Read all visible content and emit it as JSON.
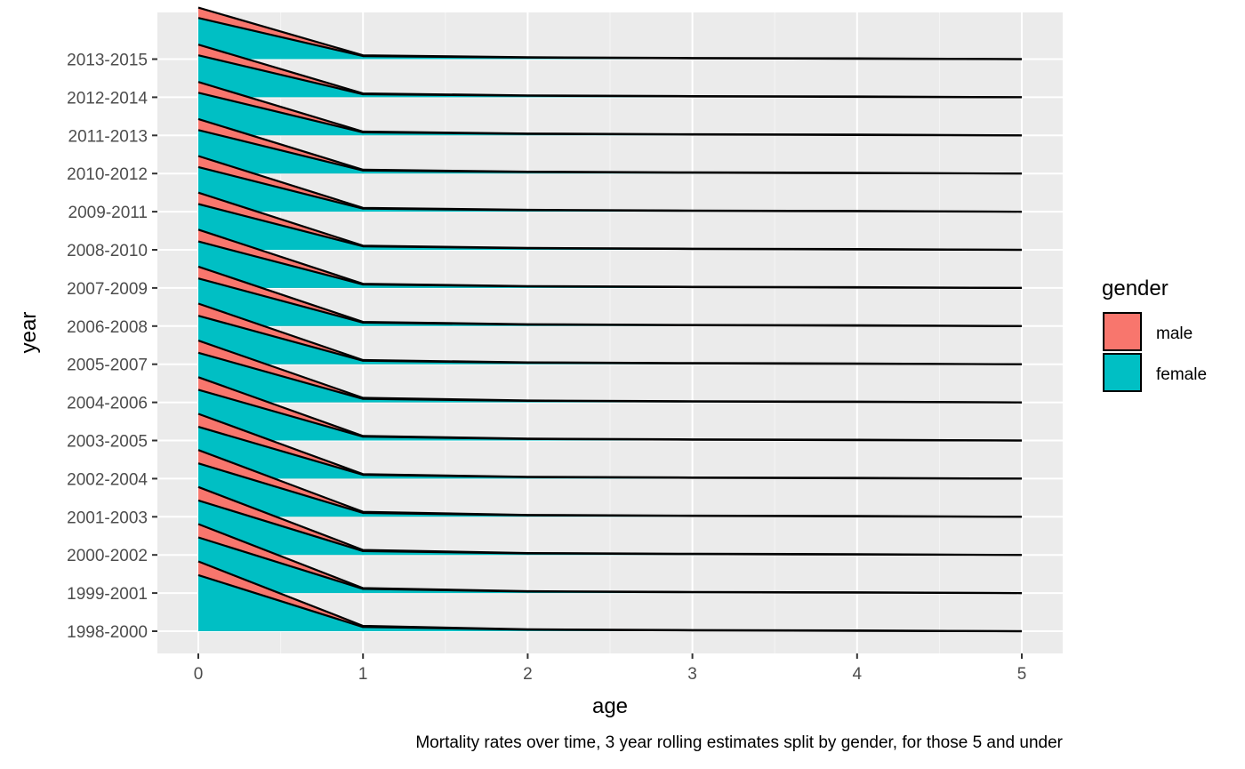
{
  "chart_data": {
    "type": "area",
    "subtype": "ridgeline",
    "xlabel": "age",
    "ylabel": "year",
    "caption": "Mortality rates over time, 3 year rolling estimates split by gender, for those 5 and under",
    "x": [
      0,
      1,
      2,
      3,
      4,
      5
    ],
    "x_ticks": [
      "0",
      "1",
      "2",
      "3",
      "4",
      "5"
    ],
    "xlim": [
      -0.25,
      5.25
    ],
    "categories": [
      "1998-2000",
      "1999-2001",
      "2000-2002",
      "2001-2003",
      "2002-2004",
      "2003-2005",
      "2004-2006",
      "2005-2007",
      "2006-2008",
      "2007-2009",
      "2008-2010",
      "2009-2011",
      "2010-2012",
      "2011-2013",
      "2012-2014",
      "2013-2015"
    ],
    "legend": {
      "title": "gender",
      "position": "right"
    },
    "grid": true,
    "height_scale": "ridge offset units: 1 = spacing between year rows",
    "series": [
      {
        "name": "male",
        "color": "#F8766D",
        "values": [
          [
            1.83,
            0.14,
            0.05,
            0.03,
            0.02,
            0.0
          ],
          [
            1.81,
            0.13,
            0.05,
            0.03,
            0.02,
            0.0
          ],
          [
            1.78,
            0.13,
            0.05,
            0.03,
            0.02,
            0.0
          ],
          [
            1.75,
            0.13,
            0.05,
            0.03,
            0.02,
            0.0
          ],
          [
            1.7,
            0.12,
            0.05,
            0.03,
            0.02,
            0.0
          ],
          [
            1.66,
            0.12,
            0.05,
            0.03,
            0.02,
            0.0
          ],
          [
            1.62,
            0.12,
            0.05,
            0.03,
            0.02,
            0.0
          ],
          [
            1.59,
            0.11,
            0.05,
            0.03,
            0.02,
            0.0
          ],
          [
            1.56,
            0.11,
            0.05,
            0.03,
            0.02,
            0.0
          ],
          [
            1.53,
            0.11,
            0.05,
            0.03,
            0.02,
            0.0
          ],
          [
            1.5,
            0.11,
            0.05,
            0.03,
            0.02,
            0.0
          ],
          [
            1.46,
            0.1,
            0.05,
            0.03,
            0.02,
            0.0
          ],
          [
            1.43,
            0.1,
            0.05,
            0.03,
            0.02,
            0.0
          ],
          [
            1.4,
            0.1,
            0.05,
            0.03,
            0.02,
            0.0
          ],
          [
            1.38,
            0.1,
            0.05,
            0.03,
            0.02,
            0.0
          ],
          [
            1.35,
            0.1,
            0.05,
            0.03,
            0.02,
            0.0
          ]
        ]
      },
      {
        "name": "female",
        "color": "#00BFC4",
        "values": [
          [
            1.47,
            0.11,
            0.04,
            0.02,
            0.01,
            0.0
          ],
          [
            1.46,
            0.11,
            0.04,
            0.02,
            0.01,
            0.0
          ],
          [
            1.43,
            0.1,
            0.04,
            0.02,
            0.01,
            0.0
          ],
          [
            1.4,
            0.1,
            0.04,
            0.02,
            0.01,
            0.0
          ],
          [
            1.36,
            0.1,
            0.04,
            0.02,
            0.01,
            0.0
          ],
          [
            1.33,
            0.1,
            0.04,
            0.02,
            0.01,
            0.0
          ],
          [
            1.3,
            0.09,
            0.04,
            0.02,
            0.01,
            0.0
          ],
          [
            1.27,
            0.09,
            0.04,
            0.02,
            0.01,
            0.0
          ],
          [
            1.25,
            0.09,
            0.04,
            0.02,
            0.01,
            0.0
          ],
          [
            1.22,
            0.09,
            0.04,
            0.02,
            0.01,
            0.0
          ],
          [
            1.2,
            0.09,
            0.04,
            0.02,
            0.01,
            0.0
          ],
          [
            1.17,
            0.08,
            0.04,
            0.02,
            0.01,
            0.0
          ],
          [
            1.14,
            0.08,
            0.04,
            0.02,
            0.01,
            0.0
          ],
          [
            1.12,
            0.08,
            0.04,
            0.02,
            0.01,
            0.0
          ],
          [
            1.1,
            0.08,
            0.04,
            0.02,
            0.01,
            0.0
          ],
          [
            1.08,
            0.08,
            0.04,
            0.02,
            0.01,
            0.0
          ]
        ]
      }
    ]
  },
  "colors": {
    "panel_bg": "#EBEBEB",
    "grid_major": "#FFFFFF",
    "outline": "#000000"
  }
}
